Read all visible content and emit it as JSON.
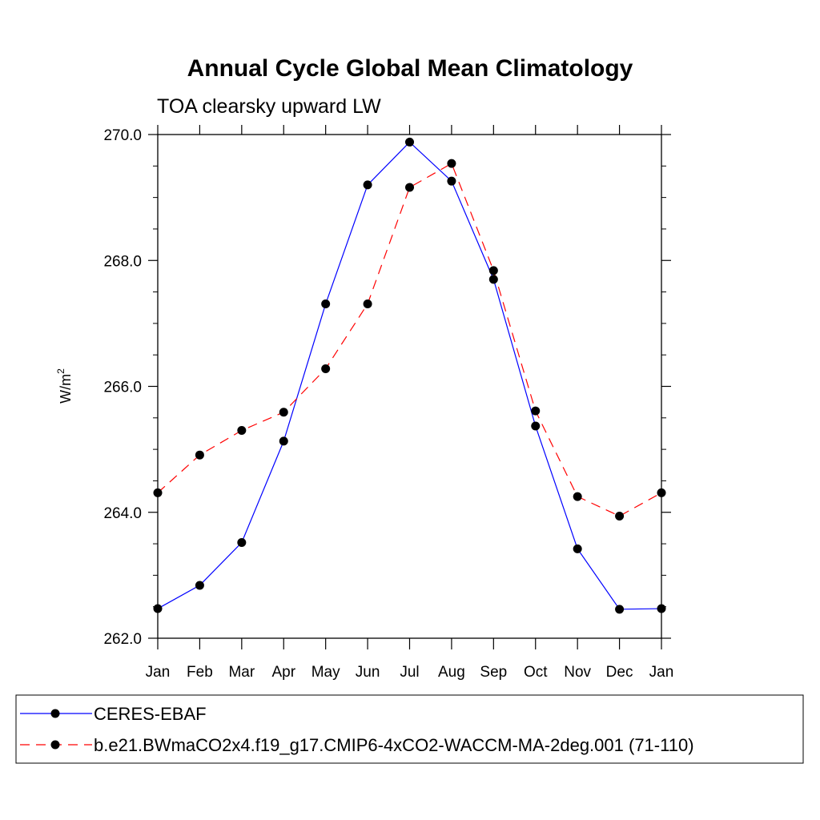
{
  "chart_data": {
    "type": "line",
    "title": "Annual Cycle Global Mean Climatology",
    "subtitle": "TOA clearsky upward LW",
    "ylabel_base": "W/m",
    "ylabel_sup": "2",
    "xlabel": "",
    "categories": [
      "Jan",
      "Feb",
      "Mar",
      "Apr",
      "May",
      "Jun",
      "Jul",
      "Aug",
      "Sep",
      "Oct",
      "Nov",
      "Dec",
      "Jan"
    ],
    "yticks": [
      "262.0",
      "264.0",
      "266.0",
      "268.0",
      "270.0"
    ],
    "ylim": [
      262.0,
      270.0
    ],
    "series": [
      {
        "name": "CERES-EBAF",
        "color": "#0000ff",
        "dash": "solid",
        "values": [
          262.47,
          262.84,
          263.52,
          265.13,
          267.31,
          269.2,
          269.88,
          269.26,
          267.7,
          265.37,
          263.42,
          262.46,
          262.47
        ]
      },
      {
        "name": "b.e21.BWmaCO2x4.f19_g17.CMIP6-4xCO2-WACCM-MA-2deg.001 (71-110)",
        "color": "#ff0000",
        "dash": "dashed",
        "values": [
          264.31,
          264.91,
          265.3,
          265.59,
          266.28,
          267.31,
          269.16,
          269.54,
          267.84,
          265.61,
          264.25,
          263.94,
          264.31
        ]
      }
    ],
    "legend_position": "bottom"
  }
}
